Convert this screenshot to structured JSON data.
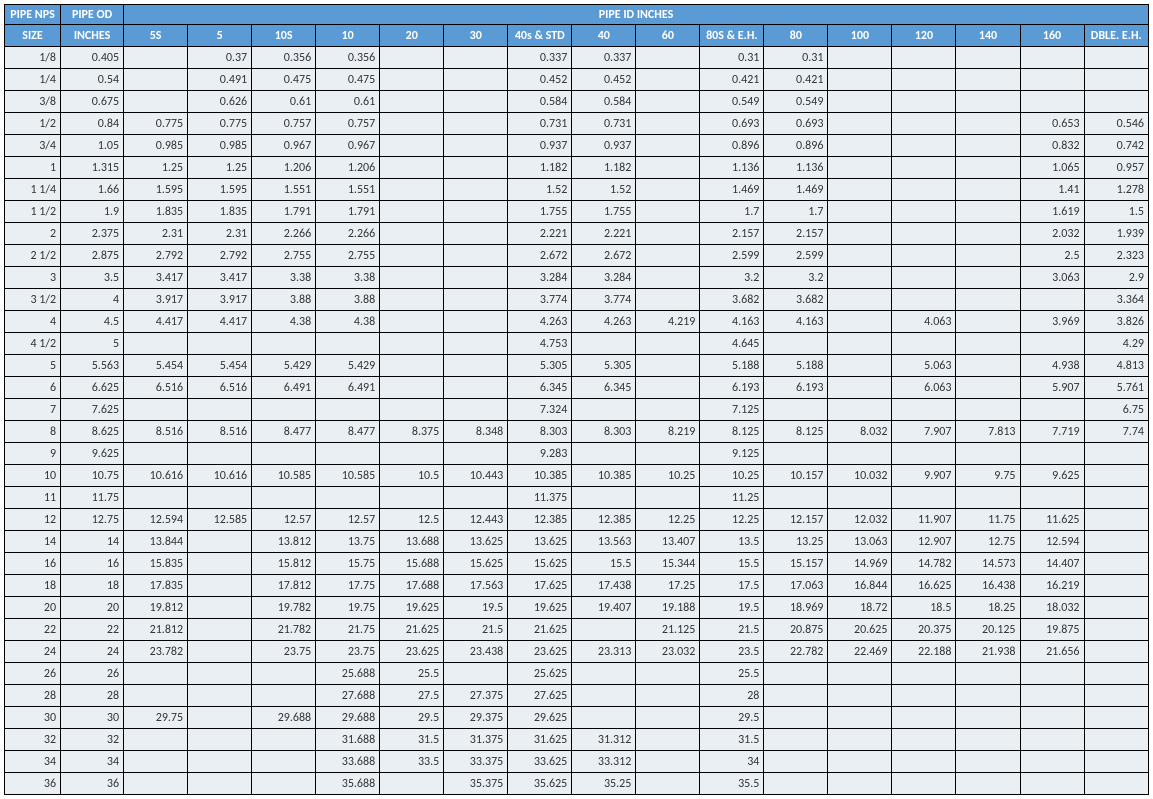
{
  "header": {
    "group_nps": "PIPE NPS",
    "group_od": "PIPE OD",
    "group_id": "PIPE ID INCHES",
    "size": "SIZE",
    "inches": "INCHES",
    "schedules": [
      "5S",
      "5",
      "10S",
      "10",
      "20",
      "30",
      "40s & STD",
      "40",
      "60",
      "80S & E.H.",
      "80",
      "100",
      "120",
      "140",
      "160",
      "DBLE. E.H."
    ]
  },
  "colors": {
    "header_bg": "#5b9bd5",
    "header_fg": "#ffffff",
    "cell_bg": "#eaeff4",
    "cell_fg": "#333333",
    "border": "#000000"
  },
  "rows": [
    {
      "size": "1/8",
      "od": "0.405",
      "v": [
        "",
        "0.37",
        "0.356",
        "0.356",
        "",
        "",
        "0.337",
        "0.337",
        "",
        "0.31",
        "0.31",
        "",
        "",
        "",
        "",
        ""
      ]
    },
    {
      "size": "1/4",
      "od": "0.54",
      "v": [
        "",
        "0.491",
        "0.475",
        "0.475",
        "",
        "",
        "0.452",
        "0.452",
        "",
        "0.421",
        "0.421",
        "",
        "",
        "",
        "",
        ""
      ]
    },
    {
      "size": "3/8",
      "od": "0.675",
      "v": [
        "",
        "0.626",
        "0.61",
        "0.61",
        "",
        "",
        "0.584",
        "0.584",
        "",
        "0.549",
        "0.549",
        "",
        "",
        "",
        "",
        ""
      ]
    },
    {
      "size": "1/2",
      "od": "0.84",
      "v": [
        "0.775",
        "0.775",
        "0.757",
        "0.757",
        "",
        "",
        "0.731",
        "0.731",
        "",
        "0.693",
        "0.693",
        "",
        "",
        "",
        "0.653",
        "0.546"
      ]
    },
    {
      "size": "3/4",
      "od": "1.05",
      "v": [
        "0.985",
        "0.985",
        "0.967",
        "0.967",
        "",
        "",
        "0.937",
        "0.937",
        "",
        "0.896",
        "0.896",
        "",
        "",
        "",
        "0.832",
        "0.742"
      ]
    },
    {
      "size": "1",
      "od": "1.315",
      "v": [
        "1.25",
        "1.25",
        "1.206",
        "1.206",
        "",
        "",
        "1.182",
        "1.182",
        "",
        "1.136",
        "1.136",
        "",
        "",
        "",
        "1.065",
        "0.957"
      ]
    },
    {
      "size": "1 1/4",
      "od": "1.66",
      "v": [
        "1.595",
        "1.595",
        "1.551",
        "1.551",
        "",
        "",
        "1.52",
        "1.52",
        "",
        "1.469",
        "1.469",
        "",
        "",
        "",
        "1.41",
        "1.278"
      ]
    },
    {
      "size": "1 1/2",
      "od": "1.9",
      "v": [
        "1.835",
        "1.835",
        "1.791",
        "1.791",
        "",
        "",
        "1.755",
        "1.755",
        "",
        "1.7",
        "1.7",
        "",
        "",
        "",
        "1.619",
        "1.5"
      ]
    },
    {
      "size": "2",
      "od": "2.375",
      "v": [
        "2.31",
        "2.31",
        "2.266",
        "2.266",
        "",
        "",
        "2.221",
        "2.221",
        "",
        "2.157",
        "2.157",
        "",
        "",
        "",
        "2.032",
        "1.939"
      ]
    },
    {
      "size": "2 1/2",
      "od": "2.875",
      "v": [
        "2.792",
        "2.792",
        "2.755",
        "2.755",
        "",
        "",
        "2.672",
        "2.672",
        "",
        "2.599",
        "2.599",
        "",
        "",
        "",
        "2.5",
        "2.323"
      ]
    },
    {
      "size": "3",
      "od": "3.5",
      "v": [
        "3.417",
        "3.417",
        "3.38",
        "3.38",
        "",
        "",
        "3.284",
        "3.284",
        "",
        "3.2",
        "3.2",
        "",
        "",
        "",
        "3.063",
        "2.9"
      ]
    },
    {
      "size": "3 1/2",
      "od": "4",
      "v": [
        "3.917",
        "3.917",
        "3.88",
        "3.88",
        "",
        "",
        "3.774",
        "3.774",
        "",
        "3.682",
        "3.682",
        "",
        "",
        "",
        "",
        "3.364"
      ]
    },
    {
      "size": "4",
      "od": "4.5",
      "v": [
        "4.417",
        "4.417",
        "4.38",
        "4.38",
        "",
        "",
        "4.263",
        "4.263",
        "4.219",
        "4.163",
        "4.163",
        "",
        "4.063",
        "",
        "3.969",
        "3.826"
      ]
    },
    {
      "size": "4 1/2",
      "od": "5",
      "v": [
        "",
        "",
        "",
        "",
        "",
        "",
        "4.753",
        "",
        "",
        "4.645",
        "",
        "",
        "",
        "",
        "",
        "4.29"
      ]
    },
    {
      "size": "5",
      "od": "5.563",
      "v": [
        "5.454",
        "5.454",
        "5.429",
        "5.429",
        "",
        "",
        "5.305",
        "5.305",
        "",
        "5.188",
        "5.188",
        "",
        "5.063",
        "",
        "4.938",
        "4.813"
      ]
    },
    {
      "size": "6",
      "od": "6.625",
      "v": [
        "6.516",
        "6.516",
        "6.491",
        "6.491",
        "",
        "",
        "6.345",
        "6.345",
        "",
        "6.193",
        "6.193",
        "",
        "6.063",
        "",
        "5.907",
        "5.761"
      ]
    },
    {
      "size": "7",
      "od": "7.625",
      "v": [
        "",
        "",
        "",
        "",
        "",
        "",
        "7.324",
        "",
        "",
        "7.125",
        "",
        "",
        "",
        "",
        "",
        "6.75"
      ]
    },
    {
      "size": "8",
      "od": "8.625",
      "v": [
        "8.516",
        "8.516",
        "8.477",
        "8.477",
        "8.375",
        "8.348",
        "8.303",
        "8.303",
        "8.219",
        "8.125",
        "8.125",
        "8.032",
        "7.907",
        "7.813",
        "7.719",
        "7.74"
      ]
    },
    {
      "size": "9",
      "od": "9.625",
      "v": [
        "",
        "",
        "",
        "",
        "",
        "",
        "9.283",
        "",
        "",
        "9.125",
        "",
        "",
        "",
        "",
        "",
        ""
      ]
    },
    {
      "size": "10",
      "od": "10.75",
      "v": [
        "10.616",
        "10.616",
        "10.585",
        "10.585",
        "10.5",
        "10.443",
        "10.385",
        "10.385",
        "10.25",
        "10.25",
        "10.157",
        "10.032",
        "9.907",
        "9.75",
        "9.625",
        ""
      ]
    },
    {
      "size": "11",
      "od": "11.75",
      "v": [
        "",
        "",
        "",
        "",
        "",
        "",
        "11.375",
        "",
        "",
        "11.25",
        "",
        "",
        "",
        "",
        "",
        ""
      ]
    },
    {
      "size": "12",
      "od": "12.75",
      "v": [
        "12.594",
        "12.585",
        "12.57",
        "12.57",
        "12.5",
        "12.443",
        "12.385",
        "12.385",
        "12.25",
        "12.25",
        "12.157",
        "12.032",
        "11.907",
        "11.75",
        "11.625",
        ""
      ]
    },
    {
      "size": "14",
      "od": "14",
      "v": [
        "13.844",
        "",
        "13.812",
        "13.75",
        "13.688",
        "13.625",
        "13.625",
        "13.563",
        "13.407",
        "13.5",
        "13.25",
        "13.063",
        "12.907",
        "12.75",
        "12.594",
        ""
      ]
    },
    {
      "size": "16",
      "od": "16",
      "v": [
        "15.835",
        "",
        "15.812",
        "15.75",
        "15.688",
        "15.625",
        "15.625",
        "15.5",
        "15.344",
        "15.5",
        "15.157",
        "14.969",
        "14.782",
        "14.573",
        "14.407",
        ""
      ]
    },
    {
      "size": "18",
      "od": "18",
      "v": [
        "17.835",
        "",
        "17.812",
        "17.75",
        "17.688",
        "17.563",
        "17.625",
        "17.438",
        "17.25",
        "17.5",
        "17.063",
        "16.844",
        "16.625",
        "16.438",
        "16.219",
        ""
      ]
    },
    {
      "size": "20",
      "od": "20",
      "v": [
        "19.812",
        "",
        "19.782",
        "19.75",
        "19.625",
        "19.5",
        "19.625",
        "19.407",
        "19.188",
        "19.5",
        "18.969",
        "18.72",
        "18.5",
        "18.25",
        "18.032",
        ""
      ]
    },
    {
      "size": "22",
      "od": "22",
      "v": [
        "21.812",
        "",
        "21.782",
        "21.75",
        "21.625",
        "21.5",
        "21.625",
        "",
        "21.125",
        "21.5",
        "20.875",
        "20.625",
        "20.375",
        "20.125",
        "19.875",
        ""
      ]
    },
    {
      "size": "24",
      "od": "24",
      "v": [
        "23.782",
        "",
        "23.75",
        "23.75",
        "23.625",
        "23.438",
        "23.625",
        "23.313",
        "23.032",
        "23.5",
        "22.782",
        "22.469",
        "22.188",
        "21.938",
        "21.656",
        ""
      ]
    },
    {
      "size": "26",
      "od": "26",
      "v": [
        "",
        "",
        "",
        "25.688",
        "25.5",
        "",
        "25.625",
        "",
        "",
        "25.5",
        "",
        "",
        "",
        "",
        "",
        ""
      ]
    },
    {
      "size": "28",
      "od": "28",
      "v": [
        "",
        "",
        "",
        "27.688",
        "27.5",
        "27.375",
        "27.625",
        "",
        "",
        "28",
        "",
        "",
        "",
        "",
        "",
        ""
      ]
    },
    {
      "size": "30",
      "od": "30",
      "v": [
        "29.75",
        "",
        "29.688",
        "29.688",
        "29.5",
        "29.375",
        "29.625",
        "",
        "",
        "29.5",
        "",
        "",
        "",
        "",
        "",
        ""
      ]
    },
    {
      "size": "32",
      "od": "32",
      "v": [
        "",
        "",
        "",
        "31.688",
        "31.5",
        "31.375",
        "31.625",
        "31.312",
        "",
        "31.5",
        "",
        "",
        "",
        "",
        "",
        ""
      ]
    },
    {
      "size": "34",
      "od": "34",
      "v": [
        "",
        "",
        "",
        "33.688",
        "33.5",
        "33.375",
        "33.625",
        "33.312",
        "",
        "34",
        "",
        "",
        "",
        "",
        "",
        ""
      ]
    },
    {
      "size": "36",
      "od": "36",
      "v": [
        "",
        "",
        "",
        "35.688",
        "",
        "35.375",
        "35.625",
        "35.25",
        "",
        "35.5",
        "",
        "",
        "",
        "",
        "",
        ""
      ]
    }
  ]
}
